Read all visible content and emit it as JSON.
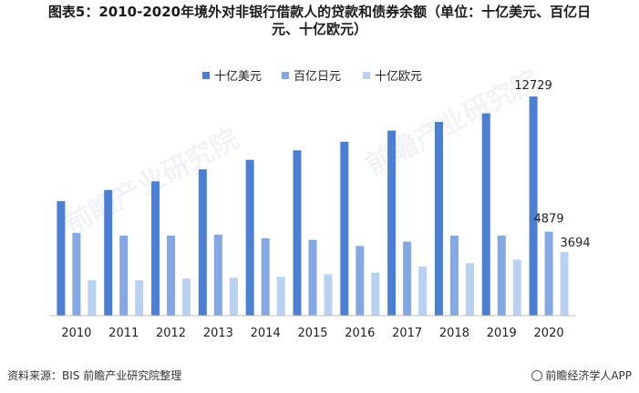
{
  "title_line1": "图表5：2010-2020年境外对非银行借款人的贷款和债券余额（单位：十亿美元、百亿日",
  "title_line2": "元、十亿欧元）",
  "source_text": "资料来源：BIS 前瞻产业研究院整理",
  "brand_text": "前瞻经济学人APP",
  "watermark_text": "前瞻产业研究院",
  "colors": {
    "usd": "#4a7fd3",
    "jpy": "#84a8e3",
    "eur": "#b9d1f1",
    "axis": "#bfbfbf"
  },
  "chart_data": {
    "type": "bar",
    "title": "图表5：2010-2020年境外对非银行借款人的贷款和债券余额（单位：十亿美元、百亿日元、十亿欧元）",
    "categories": [
      "2010",
      "2011",
      "2012",
      "2013",
      "2014",
      "2015",
      "2016",
      "2017",
      "2018",
      "2019",
      "2020"
    ],
    "series": [
      {
        "name": "十亿美元",
        "values": [
          6650,
          7300,
          7800,
          8500,
          9050,
          9600,
          10100,
          10750,
          11250,
          11750,
          12729
        ]
      },
      {
        "name": "百亿日元",
        "values": [
          4800,
          4650,
          4650,
          4700,
          4500,
          4400,
          4050,
          4300,
          4650,
          4650,
          4879
        ]
      },
      {
        "name": "十亿欧元",
        "values": [
          2050,
          2050,
          2150,
          2200,
          2250,
          2400,
          2500,
          2850,
          3050,
          3250,
          3694
        ]
      }
    ],
    "data_labels": [
      "12729",
      "4879",
      "3694"
    ],
    "ylim": [
      0,
      14000
    ],
    "legend_position": "top-center",
    "grid": false
  }
}
